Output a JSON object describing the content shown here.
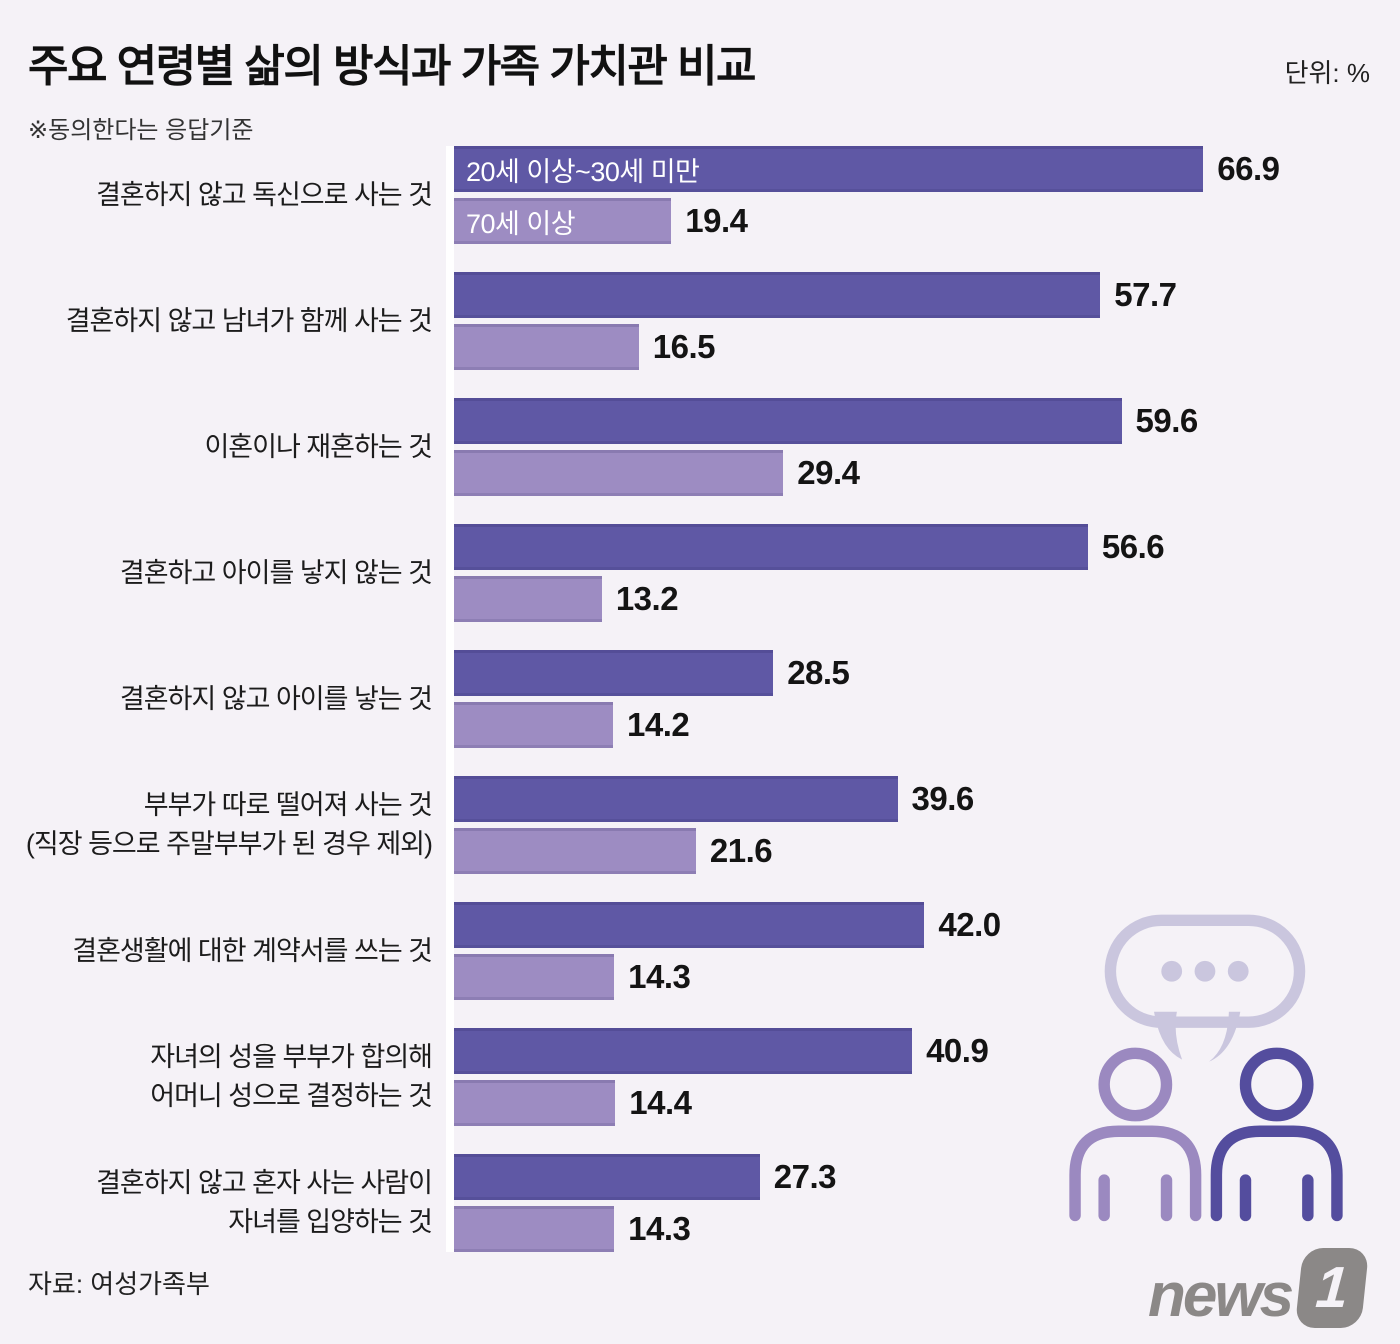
{
  "header": {
    "title": "주요 연령별 삶의 방식과 가족 가치관 비교",
    "unit_label": "단위: %",
    "note": "※동의한다는 응답기준"
  },
  "footer": {
    "source": "자료: 여성가족부",
    "logo_text": "news",
    "logo_badge": "1"
  },
  "colors": {
    "background": "#f5f2f7",
    "bar_dark": "#5f58a5",
    "bar_light": "#9d8cc2",
    "axis_line": "#ffffff",
    "value_text": "#141414",
    "logo_gray": "#8b8887",
    "bubble": "#cac6de",
    "person_left": "#9b89c0",
    "person_right": "#544d9e"
  },
  "chart_data": {
    "type": "bar",
    "orientation": "horizontal",
    "title": "주요 연령별 삶의 방식과 가족 가치관 비교",
    "xlabel": "",
    "ylabel": "",
    "xlim": [
      0,
      80
    ],
    "grid": false,
    "legend_position": "inside-first-bars",
    "series": [
      {
        "name": "20세 이상~30세 미만",
        "color": "#5f58a5"
      },
      {
        "name": "70세 이상",
        "color": "#9d8cc2"
      }
    ],
    "groups": [
      {
        "label_lines": [
          "결혼하지 않고 독신으로 사는 것"
        ],
        "values": [
          66.9,
          19.4
        ]
      },
      {
        "label_lines": [
          "결혼하지 않고 남녀가 함께 사는 것"
        ],
        "values": [
          57.7,
          16.5
        ]
      },
      {
        "label_lines": [
          "이혼이나 재혼하는 것"
        ],
        "values": [
          59.6,
          29.4
        ]
      },
      {
        "label_lines": [
          "결혼하고 아이를 낳지 않는 것"
        ],
        "values": [
          56.6,
          13.2
        ]
      },
      {
        "label_lines": [
          "결혼하지 않고 아이를 낳는 것"
        ],
        "values": [
          28.5,
          14.2
        ]
      },
      {
        "label_lines": [
          "부부가 따로 떨어져 사는 것",
          "(직장 등으로 주말부부가 된 경우 제외)"
        ],
        "values": [
          39.6,
          21.6
        ]
      },
      {
        "label_lines": [
          "결혼생활에 대한 계약서를 쓰는 것"
        ],
        "values": [
          42.0,
          14.3
        ]
      },
      {
        "label_lines": [
          "자녀의 성을 부부가 합의해",
          "어머니 성으로 결정하는 것"
        ],
        "values": [
          40.9,
          14.4
        ]
      },
      {
        "label_lines": [
          "결혼하지 않고 혼자 사는 사람이",
          "자녀를 입양하는 것"
        ],
        "values": [
          27.3,
          14.3
        ]
      }
    ]
  }
}
